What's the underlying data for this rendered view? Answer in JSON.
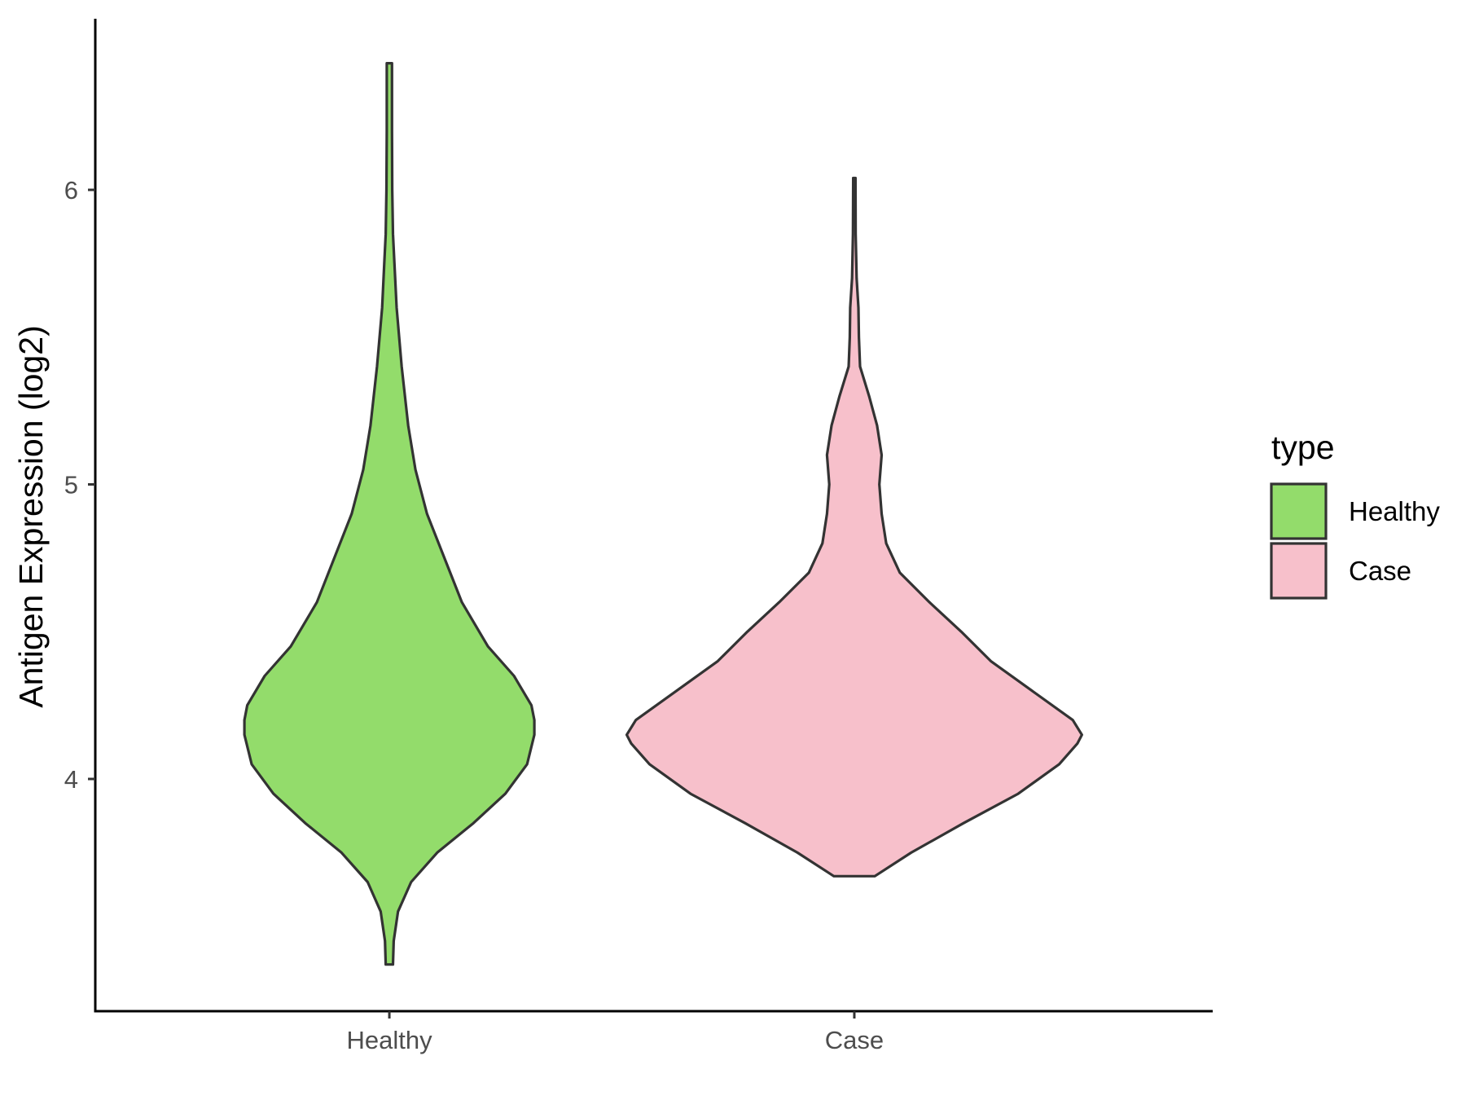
{
  "chart_data": {
    "type": "violin",
    "xlabel": "",
    "ylabel": "Antigen Expression (log2)",
    "categories": [
      "Healthy",
      "Case"
    ],
    "y_ticks": [
      4,
      5,
      6
    ],
    "ylim": [
      3.22,
      6.58
    ],
    "grid": false,
    "legend": {
      "title": "type",
      "position": "right",
      "entries": [
        {
          "label": "Healthy",
          "color": "#93DC6B"
        },
        {
          "label": "Case",
          "color": "#F7C0CB"
        }
      ]
    },
    "series": [
      {
        "category": "Healthy",
        "color": "#93DC6B",
        "min": 3.37,
        "max": 6.43,
        "density_profile": [
          [
            3.37,
            0.025
          ],
          [
            3.45,
            0.03
          ],
          [
            3.55,
            0.06
          ],
          [
            3.65,
            0.15
          ],
          [
            3.75,
            0.33
          ],
          [
            3.85,
            0.58
          ],
          [
            3.95,
            0.8
          ],
          [
            4.05,
            0.95
          ],
          [
            4.15,
            1.0
          ],
          [
            4.2,
            1.0
          ],
          [
            4.25,
            0.98
          ],
          [
            4.35,
            0.86
          ],
          [
            4.45,
            0.68
          ],
          [
            4.6,
            0.5
          ],
          [
            4.75,
            0.38
          ],
          [
            4.9,
            0.26
          ],
          [
            5.05,
            0.18
          ],
          [
            5.2,
            0.13
          ],
          [
            5.4,
            0.085
          ],
          [
            5.6,
            0.05
          ],
          [
            5.75,
            0.035
          ],
          [
            5.85,
            0.025
          ],
          [
            6.0,
            0.02
          ],
          [
            6.2,
            0.018
          ],
          [
            6.43,
            0.018
          ]
        ]
      },
      {
        "category": "Case",
        "color": "#F7C0CB",
        "min": 3.67,
        "max": 6.04,
        "density_profile": [
          [
            3.67,
            0.09
          ],
          [
            3.75,
            0.25
          ],
          [
            3.85,
            0.48
          ],
          [
            3.95,
            0.72
          ],
          [
            4.05,
            0.9
          ],
          [
            4.12,
            0.98
          ],
          [
            4.15,
            1.0
          ],
          [
            4.2,
            0.96
          ],
          [
            4.3,
            0.78
          ],
          [
            4.4,
            0.6
          ],
          [
            4.5,
            0.47
          ],
          [
            4.6,
            0.33
          ],
          [
            4.7,
            0.2
          ],
          [
            4.8,
            0.14
          ],
          [
            4.9,
            0.12
          ],
          [
            5.0,
            0.11
          ],
          [
            5.1,
            0.12
          ],
          [
            5.2,
            0.1
          ],
          [
            5.3,
            0.065
          ],
          [
            5.4,
            0.025
          ],
          [
            5.5,
            0.02
          ],
          [
            5.6,
            0.018
          ],
          [
            5.7,
            0.01
          ],
          [
            5.85,
            0.006
          ],
          [
            6.04,
            0.005
          ]
        ]
      }
    ]
  }
}
